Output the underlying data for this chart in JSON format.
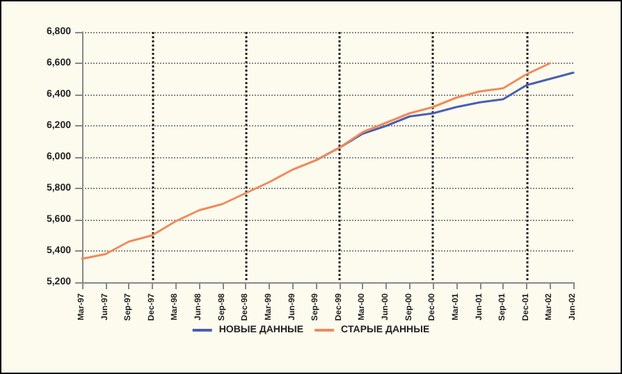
{
  "chart_data": {
    "type": "line",
    "categories": [
      "Mar-97",
      "Jun-97",
      "Sep-97",
      "Dec-97",
      "Mar-98",
      "Jun-98",
      "Sep-98",
      "Dec-98",
      "Mar-99",
      "Jun-99",
      "Sep-99",
      "Dec-99",
      "Mar-00",
      "Jun-00",
      "Sep-00",
      "Dec-00",
      "Mar-01",
      "Jun-01",
      "Sep-01",
      "Dec-01",
      "Mar-02",
      "Jun-02"
    ],
    "series": [
      {
        "name": "НОВЫЕ ДАННЫЕ",
        "color": "#4a5fb0",
        "values": [
          null,
          null,
          null,
          null,
          null,
          null,
          null,
          null,
          null,
          null,
          5980,
          6060,
          6150,
          6200,
          6260,
          6280,
          6320,
          6350,
          6370,
          6460,
          6500,
          6540
        ]
      },
      {
        "name": "СТАРЫЕ ДАННЫЕ",
        "color": "#f08a5a",
        "values": [
          5350,
          5380,
          5460,
          5500,
          5590,
          5660,
          5700,
          5770,
          5840,
          5920,
          5980,
          6060,
          6160,
          6220,
          6280,
          6320,
          6380,
          6420,
          6440,
          6530,
          6600,
          null
        ]
      }
    ],
    "ylim": [
      5200,
      6800
    ],
    "yticks": [
      {
        "value": 5200,
        "label": "5,200"
      },
      {
        "value": 5400,
        "label": "5,400"
      },
      {
        "value": 5600,
        "label": "5,600"
      },
      {
        "value": 5800,
        "label": "5,800"
      },
      {
        "value": 6000,
        "label": "6,000"
      },
      {
        "value": 6200,
        "label": "6,200"
      },
      {
        "value": 6400,
        "label": "6,400"
      },
      {
        "value": 6600,
        "label": "6,600"
      },
      {
        "value": 6800,
        "label": "6,800"
      }
    ],
    "grid": true,
    "legend": "bottom",
    "marker": "none",
    "line_style": "solid"
  }
}
